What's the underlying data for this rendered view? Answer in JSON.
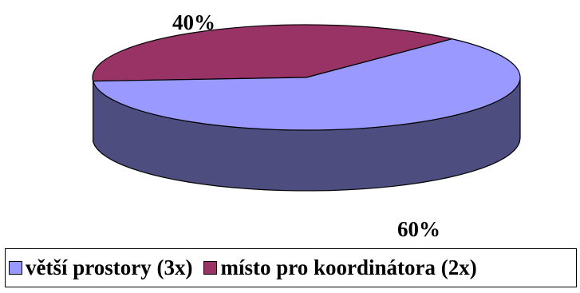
{
  "chart_data": {
    "type": "pie",
    "style": "3d",
    "title": "",
    "slices": [
      {
        "label": "větší prostory (3x)",
        "value": 60,
        "value_label": "60%",
        "color": "#9999ff",
        "side_color": "#4d4d80"
      },
      {
        "label": "místo pro koordinátora (2x)",
        "value": 40,
        "value_label": "40%",
        "color": "#993366",
        "side_color": "#4d1a33"
      }
    ],
    "legend_position": "bottom"
  }
}
